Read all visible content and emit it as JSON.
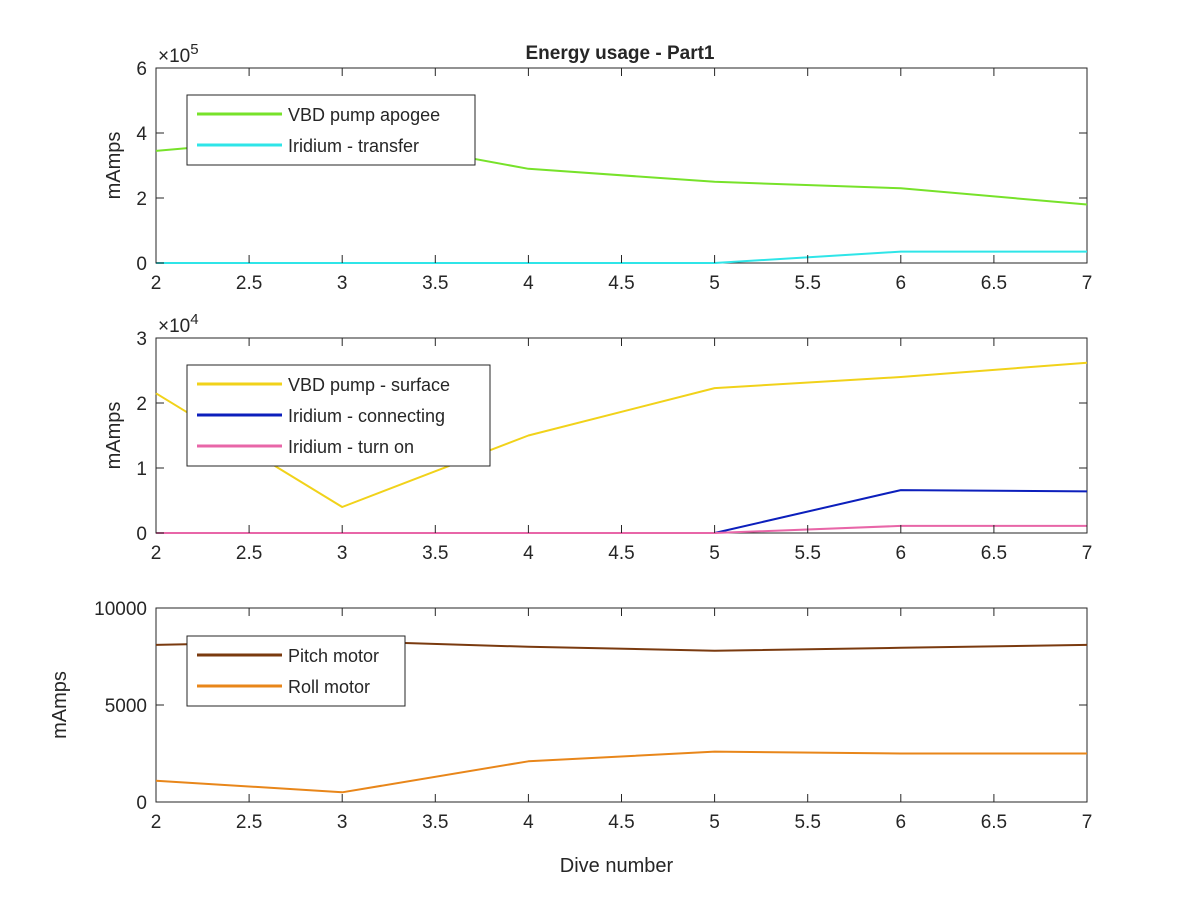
{
  "figure": {
    "title": "Energy usage - Part1"
  },
  "chart_data": [
    {
      "type": "line",
      "title": "Energy usage - Part1",
      "xlabel": "",
      "ylabel": "mAmps",
      "xlim": [
        2,
        7
      ],
      "ylim": [
        0,
        600000
      ],
      "xticks": [
        "2",
        "2.5",
        "3",
        "3.5",
        "4",
        "4.5",
        "5",
        "5.5",
        "6",
        "6.5",
        "7"
      ],
      "yticks": [
        "0",
        "2",
        "4",
        "6"
      ],
      "exponent": "10^5",
      "grid": false,
      "legend_position": "top-left",
      "x": [
        2,
        3,
        4,
        5,
        6,
        7
      ],
      "series": [
        {
          "name": "VBD pump apogee",
          "color": "#77e22a",
          "values": [
            345000,
            395000,
            290000,
            250000,
            230000,
            180000
          ]
        },
        {
          "name": "Iridium - transfer",
          "color": "#2fe5e8",
          "values": [
            0,
            0,
            0,
            0,
            35000,
            35000
          ]
        }
      ]
    },
    {
      "type": "line",
      "title": "",
      "xlabel": "",
      "ylabel": "mAmps",
      "xlim": [
        2,
        7
      ],
      "ylim": [
        0,
        30000
      ],
      "xticks": [
        "2",
        "2.5",
        "3",
        "3.5",
        "4",
        "4.5",
        "5",
        "5.5",
        "6",
        "6.5",
        "7"
      ],
      "yticks": [
        "0",
        "1",
        "2",
        "3"
      ],
      "exponent": "10^4",
      "grid": false,
      "legend_position": "top-left",
      "x": [
        2,
        3,
        4,
        5,
        6,
        7
      ],
      "series": [
        {
          "name": "VBD pump - surface",
          "color": "#f1d21a",
          "values": [
            21500,
            4000,
            15000,
            22300,
            24000,
            26200
          ]
        },
        {
          "name": "Iridium - connecting",
          "color": "#0c1fbc",
          "values": [
            0,
            0,
            0,
            0,
            6600,
            6400
          ]
        },
        {
          "name": "Iridium - turn on",
          "color": "#e866a8",
          "values": [
            0,
            0,
            0,
            0,
            1100,
            1100
          ]
        }
      ]
    },
    {
      "type": "line",
      "title": "",
      "xlabel": "Dive number",
      "ylabel": "mAmps",
      "xlim": [
        2,
        7
      ],
      "ylim": [
        0,
        10000
      ],
      "xticks": [
        "2",
        "2.5",
        "3",
        "3.5",
        "4",
        "4.5",
        "5",
        "5.5",
        "6",
        "6.5",
        "7"
      ],
      "yticks": [
        "0",
        "5000",
        "10000"
      ],
      "exponent": "",
      "grid": false,
      "legend_position": "top-left",
      "x": [
        2,
        3,
        4,
        5,
        6,
        7
      ],
      "series": [
        {
          "name": "Pitch motor",
          "color": "#7a3a0f",
          "values": [
            8100,
            8300,
            8000,
            7800,
            7950,
            8100
          ]
        },
        {
          "name": "Roll motor",
          "color": "#e8861a",
          "values": [
            1100,
            500,
            2100,
            2600,
            2500,
            2500
          ]
        }
      ]
    }
  ]
}
